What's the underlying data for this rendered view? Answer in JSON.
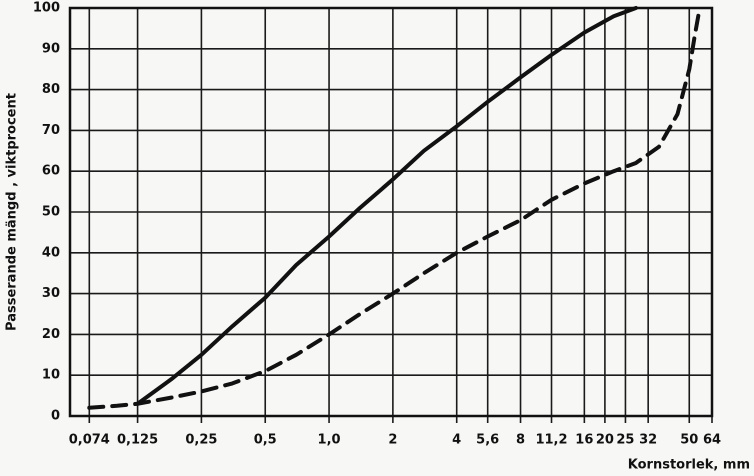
{
  "chart_data": {
    "type": "line",
    "y_label": "Passerande mängd , viktprocent",
    "x_label": "Kornstorlek, mm",
    "log_x": true,
    "grid": true,
    "xlim": [
      0.06,
      64
    ],
    "ylim": [
      0,
      100
    ],
    "xticks": [
      {
        "value": 0.074,
        "label": "0,074"
      },
      {
        "value": 0.125,
        "label": "0,125"
      },
      {
        "value": 0.25,
        "label": "0,25"
      },
      {
        "value": 0.5,
        "label": "0,5"
      },
      {
        "value": 1,
        "label": "1,0"
      },
      2,
      4,
      {
        "value": 5.6,
        "label": "5,6"
      },
      8,
      {
        "value": 11.2,
        "label": "11,2"
      },
      16,
      20,
      25,
      32,
      50,
      64
    ],
    "yticks": [
      0,
      10,
      20,
      30,
      40,
      50,
      60,
      70,
      80,
      90,
      100
    ],
    "series": [
      {
        "color": "#111111",
        "dashed": false,
        "x": [
          0.125,
          0.18,
          0.25,
          0.35,
          0.5,
          0.7,
          1,
          1.4,
          2,
          2.8,
          4,
          5.6,
          8,
          11.2,
          16,
          22,
          28
        ],
        "values": [
          3,
          9,
          15,
          22,
          29,
          37,
          44,
          51,
          58,
          65,
          71,
          77,
          83,
          88.5,
          94,
          98,
          100
        ]
      },
      {
        "color": "#111111",
        "dashed": true,
        "x": [
          0.074,
          0.1,
          0.125,
          0.18,
          0.25,
          0.35,
          0.5,
          0.7,
          1,
          1.4,
          2,
          2.8,
          4,
          5.6,
          8,
          11.2,
          16,
          22,
          28,
          36,
          44,
          50,
          53,
          56
        ],
        "values": [
          2,
          2.5,
          3,
          4.5,
          6,
          8,
          11,
          15,
          20,
          25,
          30,
          35,
          40,
          44,
          48,
          53,
          57,
          60,
          62,
          66,
          74,
          85,
          93,
          100
        ]
      }
    ]
  }
}
